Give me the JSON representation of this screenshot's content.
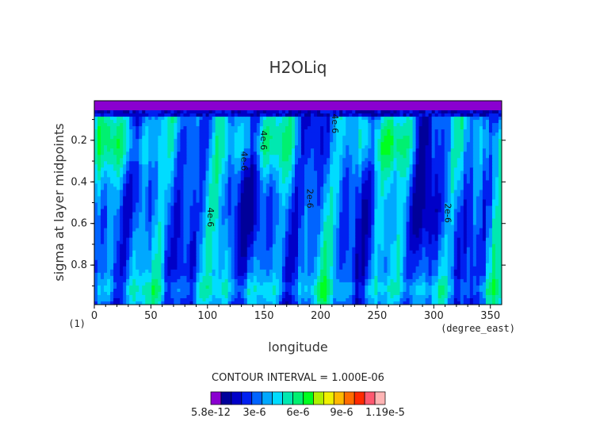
{
  "chart_data": {
    "type": "heatmap",
    "title": "H2OLiq",
    "xlabel": "longitude",
    "ylabel": "sigma at layer midpoints",
    "x_units": "(degree_east)",
    "y_units": "(1)",
    "xlim": [
      0,
      360
    ],
    "ylim": [
      0.99,
      0.01
    ],
    "x_ticks": [
      0,
      50,
      100,
      150,
      200,
      250,
      300,
      350
    ],
    "y_ticks": [
      0.2,
      0.4,
      0.6,
      0.8
    ],
    "contour_interval_text": "CONTOUR INTERVAL = 1.000E-06",
    "contour_labels": [
      {
        "text": "4e-6",
        "lon": 210,
        "sigma": 0.12
      },
      {
        "text": "4e-6",
        "lon": 147,
        "sigma": 0.2
      },
      {
        "text": "4e-6",
        "lon": 130,
        "sigma": 0.3
      },
      {
        "text": "4e-6",
        "lon": 100,
        "sigma": 0.57
      },
      {
        "text": "2e-6",
        "lon": 188,
        "sigma": 0.48
      },
      {
        "text": "2e-6",
        "lon": 310,
        "sigma": 0.55
      }
    ],
    "colorbar": {
      "tick_labels": [
        "5.8e-12",
        "3e-6",
        "6e-6",
        "9e-6",
        "1.19e-5"
      ],
      "min": 5.8e-12,
      "max": 1.19e-05,
      "colors": [
        "#8a00d0",
        "#00009a",
        "#0000c8",
        "#0020f0",
        "#0064ff",
        "#00a8ff",
        "#00dcff",
        "#00e8b0",
        "#00f070",
        "#00ff20",
        "#b0f000",
        "#f0f000",
        "#ffb800",
        "#ff6c00",
        "#ff2a00",
        "#ff5870",
        "#ffb4b4"
      ]
    }
  }
}
